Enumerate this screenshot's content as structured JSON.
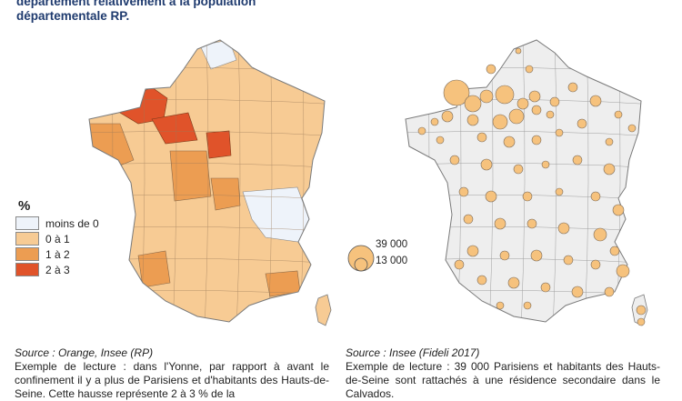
{
  "title": {
    "line1": "département relativement à la population",
    "line2": "départementale RP."
  },
  "legend_left": {
    "unit": "%",
    "items": [
      {
        "label": "moins de 0",
        "color": "#eef3fa"
      },
      {
        "label": "0 à 1",
        "color": "#f7cb94"
      },
      {
        "label": "1 à 2",
        "color": "#ec9d52"
      },
      {
        "label": "2 à 3",
        "color": "#e0532a"
      }
    ]
  },
  "legend_right": {
    "large": "39 000",
    "small": "13 000",
    "circle_color": "#f6c27d"
  },
  "caption_left": {
    "source": "Source : Orange, Insee (RP)",
    "text": "Exemple de lecture : dans l'Yonne, par rapport à avant le confinement il y a plus de Parisiens et d'habitants des Hauts-de-Seine. Cette hausse représente 2 à 3 % de la"
  },
  "caption_right": {
    "source": "Source : Insee (Fideli 2017)",
    "text": "Exemple de lecture : 39 000 Parisiens et habitants des Hauts-de-Seine sont rattachés à une résidence secondaire dans le Calvados."
  },
  "colors": {
    "map_base": "#f7cb94",
    "map_mid": "#ec9d52",
    "map_high": "#e0532a",
    "map_low": "#eef3fa",
    "map_grey": "#eeeeee",
    "border": "#7a7a7a"
  }
}
